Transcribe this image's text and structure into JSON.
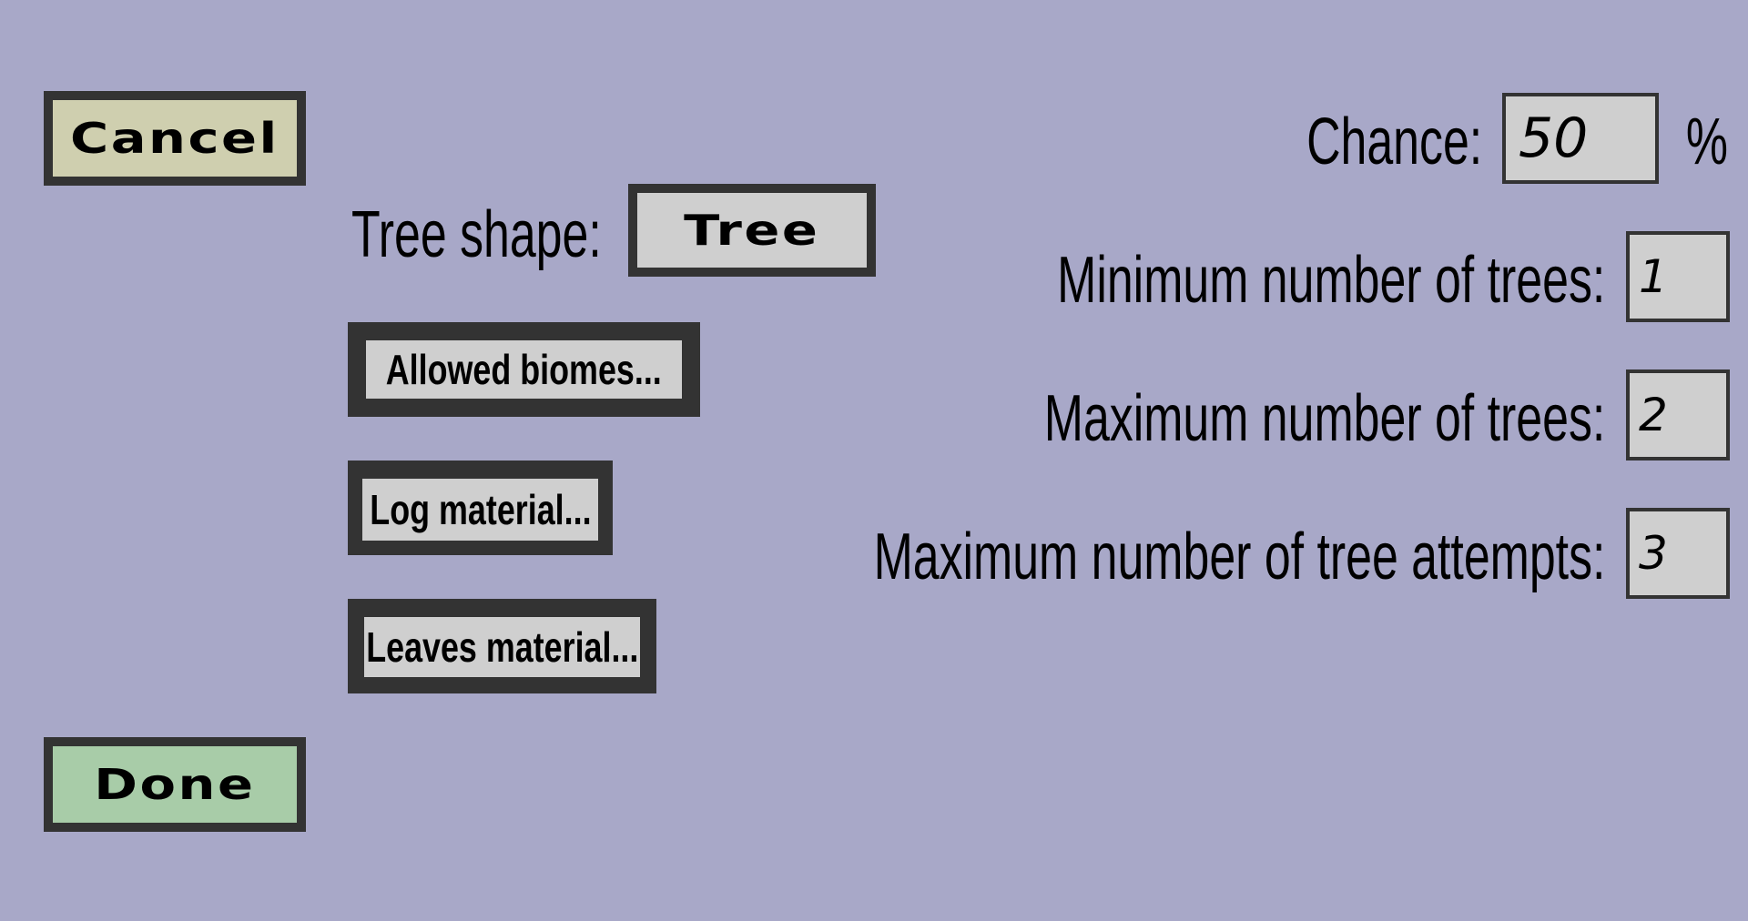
{
  "buttons": {
    "cancel": "Cancel",
    "done": "Done",
    "tree_shape_value": "Tree",
    "allowed_biomes": "Allowed biomes...",
    "log_material": "Log material...",
    "leaves_material": "Leaves material..."
  },
  "labels": {
    "tree_shape": "Tree shape:",
    "chance": "Chance:",
    "chance_unit": "%",
    "min_trees": "Minimum number of trees:",
    "max_trees": "Maximum number of trees:",
    "max_attempts": "Maximum number of tree attempts:"
  },
  "fields": {
    "chance": "50",
    "min_trees": "1",
    "max_trees": "2",
    "max_attempts": "3"
  },
  "colors": {
    "background": "#a8a8c8",
    "border": "#333333",
    "cancel_fill": "#cfcfaf",
    "done_fill": "#a8cca8",
    "neutral_fill": "#cfcfcf"
  }
}
